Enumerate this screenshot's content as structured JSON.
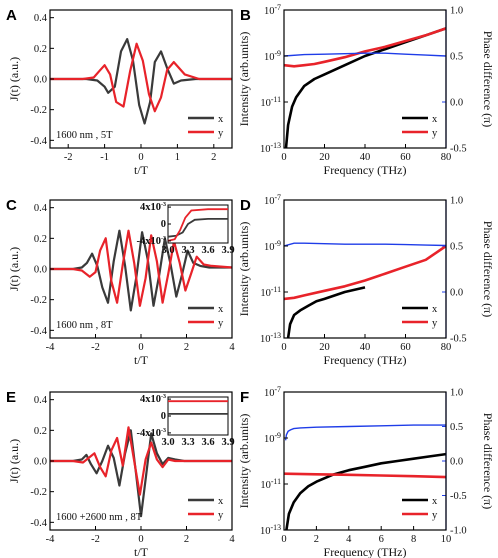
{
  "colors": {
    "x": "#3a3a3a",
    "y": "#e8232a",
    "intensity": "#000000",
    "phase": "#1f3de8"
  },
  "chart_data": [
    {
      "panel": "A",
      "type": "line",
      "xlabel": "t/T",
      "ylabel": "J(t) (a.u.)",
      "xlim": [
        -2.5,
        2.5
      ],
      "ylim": [
        -0.45,
        0.45
      ],
      "xticks": [
        -2,
        -1,
        0,
        1,
        2
      ],
      "yticks": [
        -0.4,
        -0.2,
        0.0,
        0.2,
        0.4
      ],
      "annotation": "1600 nm , 5T",
      "legend": [
        "x",
        "y"
      ],
      "legend_position": "lower-right",
      "series": [
        {
          "name": "x",
          "x": [
            -2.5,
            -1.5,
            -1.2,
            -1.0,
            -0.9,
            -0.72,
            -0.55,
            -0.38,
            -0.22,
            -0.05,
            0.1,
            0.25,
            0.38,
            0.55,
            0.72,
            0.9,
            1.1,
            1.5,
            2.5
          ],
          "y": [
            0,
            0,
            -0.01,
            -0.05,
            -0.09,
            -0.05,
            0.18,
            0.26,
            0.12,
            -0.17,
            -0.29,
            -0.15,
            0.11,
            0.18,
            0.07,
            -0.03,
            -0.01,
            0,
            0
          ]
        },
        {
          "name": "y",
          "x": [
            -2.5,
            -1.6,
            -1.3,
            -1.15,
            -1.0,
            -0.85,
            -0.68,
            -0.48,
            -0.3,
            -0.12,
            0.05,
            0.22,
            0.38,
            0.55,
            0.72,
            0.9,
            1.2,
            1.6,
            2.5
          ],
          "y": [
            0,
            0,
            0.01,
            0.05,
            0.09,
            0.03,
            -0.15,
            -0.18,
            0.05,
            0.23,
            0.12,
            -0.1,
            -0.21,
            -0.12,
            0.06,
            0.11,
            0.03,
            0,
            0
          ]
        }
      ]
    },
    {
      "panel": "B",
      "type": "line",
      "xlabel": "Frequency (THz)",
      "ylabel": "Intensity (arb.units)",
      "y2label": "Phase difference (π)",
      "xlim": [
        0,
        80
      ],
      "ylim_log10": [
        -13,
        -7
      ],
      "y2lim": [
        -0.5,
        1.0
      ],
      "xticks": [
        0,
        20,
        40,
        60,
        80
      ],
      "yticks_labels": [
        "10-13",
        "10-11",
        "10-9",
        "10-7"
      ],
      "y2ticks": [
        -0.5,
        0.0,
        0.5,
        1.0
      ],
      "legend": [
        "x",
        "y"
      ],
      "legend_position": "lower-right",
      "series": [
        {
          "name": "x",
          "x": [
            1,
            2,
            4,
            6,
            10,
            15,
            20,
            30,
            40,
            50,
            60,
            70,
            80
          ],
          "log10_y": [
            -13,
            -12.0,
            -11.2,
            -10.8,
            -10.3,
            -10.0,
            -9.8,
            -9.4,
            -9.0,
            -8.7,
            -8.4,
            -8.1,
            -7.8
          ]
        },
        {
          "name": "y",
          "x": [
            0,
            5,
            10,
            15,
            20,
            30,
            40,
            50,
            60,
            70,
            80
          ],
          "log10_y": [
            -9.4,
            -9.45,
            -9.4,
            -9.35,
            -9.25,
            -9.05,
            -8.8,
            -8.6,
            -8.35,
            -8.1,
            -7.8
          ]
        },
        {
          "name": "phase",
          "axis": "right",
          "x": [
            0,
            10,
            20,
            30,
            40,
            50,
            60,
            70,
            80
          ],
          "y": [
            0.5,
            0.515,
            0.52,
            0.525,
            0.53,
            0.53,
            0.52,
            0.51,
            0.5
          ]
        }
      ]
    },
    {
      "panel": "C",
      "type": "line",
      "xlabel": "t/T",
      "ylabel": "J(t) (a.u.)",
      "xlim": [
        -4,
        4
      ],
      "ylim": [
        -0.45,
        0.45
      ],
      "xticks": [
        -4,
        -2,
        0,
        2,
        4
      ],
      "yticks": [
        -0.4,
        -0.2,
        0.0,
        0.2,
        0.4
      ],
      "annotation": "1600 nm , 8T",
      "legend": [
        "x",
        "y"
      ],
      "legend_position": "lower-right",
      "series": [
        {
          "name": "x",
          "x": [
            -4,
            -3.0,
            -2.6,
            -2.38,
            -2.15,
            -1.92,
            -1.7,
            -1.45,
            -1.2,
            -0.95,
            -0.7,
            -0.45,
            -0.2,
            0.05,
            0.3,
            0.55,
            0.8,
            1.05,
            1.3,
            1.55,
            1.8,
            2.05,
            2.3,
            2.6,
            3.0,
            4
          ],
          "y": [
            0,
            0,
            0.01,
            0.04,
            0.1,
            0.02,
            -0.12,
            -0.22,
            0.05,
            0.25,
            0.02,
            -0.27,
            -0.05,
            0.24,
            0.06,
            -0.24,
            -0.04,
            0.2,
            0.03,
            -0.18,
            -0.04,
            0.12,
            0.04,
            0.02,
            0.01,
            0.01
          ]
        },
        {
          "name": "y",
          "x": [
            -4,
            -3.0,
            -2.6,
            -2.25,
            -2.0,
            -1.8,
            -1.55,
            -1.3,
            -1.05,
            -0.8,
            -0.55,
            -0.3,
            -0.05,
            0.2,
            0.45,
            0.7,
            0.95,
            1.2,
            1.45,
            1.7,
            1.95,
            2.2,
            2.45,
            2.75,
            3.1,
            4
          ],
          "y": [
            0,
            0,
            -0.01,
            -0.05,
            -0.02,
            0.12,
            0.2,
            -0.08,
            -0.22,
            0.03,
            0.25,
            0.04,
            -0.24,
            -0.06,
            0.22,
            0.05,
            -0.22,
            -0.03,
            0.18,
            0.04,
            -0.14,
            -0.03,
            0.08,
            0.03,
            0.02,
            0.01
          ]
        }
      ],
      "inset": {
        "xlim": [
          3.0,
          3.9
        ],
        "xticks": [
          3.0,
          3.3,
          3.6,
          3.9
        ],
        "yticks_labels": [
          "4x10-3",
          "0",
          "-4x10-3"
        ],
        "series": [
          {
            "name": "x",
            "x": [
              3.0,
              3.12,
              3.22,
              3.3,
              3.4,
              3.6,
              3.9
            ],
            "y": [
              -0.003,
              -0.0028,
              -0.002,
              0.0,
              0.001,
              0.0012,
              0.0012
            ]
          },
          {
            "name": "y",
            "x": [
              3.0,
              3.1,
              3.18,
              3.26,
              3.35,
              3.6,
              3.9
            ],
            "y": [
              -0.004,
              -0.0036,
              -0.0015,
              0.0015,
              0.0032,
              0.0035,
              0.0035
            ]
          }
        ]
      }
    },
    {
      "panel": "D",
      "type": "line",
      "xlabel": "Frequency (THz)",
      "ylabel": "Intensity (arb.units)",
      "y2label": "Phase difference (π)",
      "xlim": [
        0,
        80
      ],
      "ylim_log10": [
        -13,
        -7
      ],
      "y2lim": [
        -0.5,
        1.0
      ],
      "xticks": [
        0,
        20,
        40,
        60,
        80
      ],
      "yticks_labels": [
        "10-13",
        "10-11",
        "10-9",
        "10-7"
      ],
      "y2ticks": [
        -0.5,
        0.0,
        0.5,
        1.0
      ],
      "legend": [
        "x",
        "y"
      ],
      "legend_position": "lower-right",
      "series": [
        {
          "name": "x",
          "x": [
            2,
            3,
            5,
            8,
            12,
            16,
            20,
            30,
            40
          ],
          "log10_y": [
            -13,
            -12.4,
            -12.0,
            -11.8,
            -11.6,
            -11.4,
            -11.3,
            -11.0,
            -10.8
          ]
        },
        {
          "name": "y",
          "x": [
            0,
            5,
            10,
            20,
            30,
            40,
            50,
            60,
            70,
            75,
            80
          ],
          "log10_y": [
            -11.3,
            -11.25,
            -11.15,
            -10.95,
            -10.75,
            -10.5,
            -10.2,
            -9.9,
            -9.6,
            -9.3,
            -9.0
          ]
        },
        {
          "name": "phase",
          "axis": "right",
          "x": [
            0,
            5,
            10,
            20,
            30,
            40,
            50,
            60,
            70,
            80
          ],
          "y": [
            0.5,
            0.53,
            0.53,
            0.525,
            0.52,
            0.52,
            0.52,
            0.515,
            0.51,
            0.505
          ]
        }
      ]
    },
    {
      "panel": "E",
      "type": "line",
      "xlabel": "t/T",
      "ylabel": "J(t) (a.u.)",
      "xlim": [
        -4,
        4
      ],
      "ylim": [
        -0.45,
        0.45
      ],
      "xticks": [
        -4,
        -2,
        0,
        2,
        4
      ],
      "yticks": [
        -0.4,
        -0.2,
        0.0,
        0.2,
        0.4
      ],
      "annotation": "1600 +2600 nm , 8T",
      "legend": [
        "x",
        "y"
      ],
      "legend_position": "lower-right",
      "series": [
        {
          "name": "x",
          "x": [
            -4,
            -3.0,
            -2.6,
            -2.4,
            -2.2,
            -1.95,
            -1.7,
            -1.45,
            -1.2,
            -0.95,
            -0.7,
            -0.45,
            -0.22,
            0.0,
            0.22,
            0.45,
            0.7,
            0.95,
            1.2,
            1.5,
            1.9,
            2.4,
            3.0,
            4
          ],
          "y": [
            0,
            0,
            0.01,
            0.04,
            -0.02,
            -0.08,
            0.0,
            0.1,
            0.02,
            -0.16,
            0.05,
            0.2,
            -0.08,
            -0.36,
            -0.1,
            0.18,
            0.05,
            -0.02,
            0.02,
            0.01,
            0.0,
            0.0,
            0.0,
            0.0
          ]
        },
        {
          "name": "y",
          "x": [
            -4,
            -3.0,
            -2.55,
            -2.3,
            -2.05,
            -1.8,
            -1.55,
            -1.3,
            -1.05,
            -0.8,
            -0.55,
            -0.3,
            -0.05,
            0.2,
            0.45,
            0.7,
            0.95,
            1.2,
            1.5,
            1.9,
            2.4,
            3.0,
            4
          ],
          "y": [
            0,
            0,
            -0.01,
            0.02,
            0.05,
            -0.04,
            -0.1,
            0.07,
            0.15,
            -0.03,
            0.22,
            0.0,
            -0.22,
            0.01,
            0.12,
            0.01,
            -0.04,
            0.01,
            0.0,
            0.0,
            0.0,
            0.0,
            0.0
          ]
        }
      ],
      "inset": {
        "xlim": [
          3.0,
          3.9
        ],
        "xticks": [
          3.0,
          3.3,
          3.6,
          3.9
        ],
        "yticks_labels": [
          "4x10-3",
          "0",
          "-4x10-3"
        ],
        "series": [
          {
            "name": "x",
            "x": [
              3.0,
              3.9
            ],
            "y": [
              0.0005,
              0.0005
            ]
          },
          {
            "name": "y",
            "x": [
              3.0,
              3.9
            ],
            "y": [
              0.0035,
              0.0035
            ]
          }
        ]
      }
    },
    {
      "panel": "F",
      "type": "line",
      "xlabel": "Frequency (THz)",
      "ylabel": "Intensity (arb.units)",
      "y2label": "Phase difference (π)",
      "xlim": [
        0,
        10
      ],
      "ylim_log10": [
        -13,
        -7
      ],
      "y2lim": [
        -1.0,
        1.0
      ],
      "xticks": [
        0,
        2,
        4,
        6,
        8,
        10
      ],
      "yticks_labels": [
        "10-13",
        "10-11",
        "10-9",
        "10-7"
      ],
      "y2ticks": [
        -1.0,
        -0.5,
        0.0,
        0.5,
        1.0
      ],
      "legend": [
        "x",
        "y"
      ],
      "legend_position": "lower-right",
      "series": [
        {
          "name": "x",
          "x": [
            0.15,
            0.3,
            0.6,
            1.0,
            1.5,
            2.0,
            3.0,
            4.0,
            5.0,
            6.0,
            7.0,
            8.0,
            9.0,
            10.0
          ],
          "log10_y": [
            -13,
            -12.3,
            -11.8,
            -11.4,
            -11.1,
            -10.9,
            -10.6,
            -10.4,
            -10.25,
            -10.1,
            -10.0,
            -9.9,
            -9.8,
            -9.7
          ]
        },
        {
          "name": "y",
          "x": [
            0,
            2,
            4,
            6,
            8,
            10
          ],
          "log10_y": [
            -10.55,
            -10.58,
            -10.6,
            -10.63,
            -10.66,
            -10.7
          ]
        },
        {
          "name": "phase",
          "axis": "right",
          "x": [
            0.1,
            0.15,
            0.25,
            0.4,
            0.6,
            1.0,
            2,
            4,
            6,
            8,
            10
          ],
          "y": [
            0.3,
            0.38,
            0.43,
            0.45,
            0.47,
            0.48,
            0.49,
            0.5,
            0.51,
            0.52,
            0.52
          ]
        }
      ]
    }
  ]
}
